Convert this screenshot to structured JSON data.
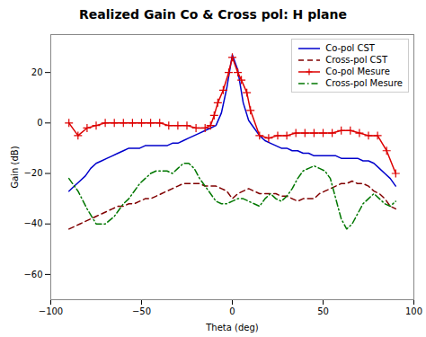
{
  "chart_data": {
    "type": "line",
    "title": "Realized Gain Co & Cross pol: H plane",
    "xlabel": "Theta (deg)",
    "ylabel": "Gain (dB)",
    "xlim": [
      -100,
      100
    ],
    "ylim": [
      -70,
      35
    ],
    "xticks": [
      -100,
      -50,
      0,
      50,
      100
    ],
    "yticks": [
      -60,
      -40,
      -20,
      0,
      20
    ],
    "grid": false,
    "legend": "upper right",
    "series": [
      {
        "name": "Co-pol CST",
        "color": "#0000cc",
        "line_style": "solid",
        "x": [
          -90,
          -87,
          -84,
          -81,
          -78,
          -75,
          -72,
          -69,
          -66,
          -63,
          -60,
          -57,
          -54,
          -51,
          -48,
          -45,
          -42,
          -39,
          -36,
          -33,
          -30,
          -27,
          -24,
          -21,
          -18,
          -15,
          -12,
          -9,
          -6,
          -3,
          0,
          3,
          6,
          9,
          12,
          15,
          18,
          21,
          24,
          27,
          30,
          33,
          36,
          39,
          42,
          45,
          48,
          51,
          54,
          57,
          60,
          63,
          66,
          69,
          72,
          75,
          78,
          81,
          84,
          87,
          90
        ],
        "values": [
          -27,
          -25,
          -23,
          -21,
          -18,
          -16,
          -15,
          -14,
          -13,
          -12,
          -11,
          -10,
          -10,
          -10,
          -9,
          -9,
          -9,
          -9,
          -9,
          -8,
          -8,
          -7,
          -6,
          -5,
          -4,
          -3,
          -2,
          -1,
          4,
          14,
          27,
          21,
          8,
          1,
          -2,
          -5,
          -7,
          -8,
          -9,
          -10,
          -10,
          -11,
          -11,
          -12,
          -12,
          -13,
          -13,
          -13,
          -13,
          -13,
          -14,
          -14,
          -14,
          -14,
          -15,
          -15,
          -16,
          -18,
          -20,
          -22,
          -25
        ]
      },
      {
        "name": "Cross-pol CST",
        "color": "#800000",
        "line_style": "dashed",
        "x": [
          -90,
          -87,
          -84,
          -81,
          -78,
          -75,
          -72,
          -69,
          -66,
          -63,
          -60,
          -57,
          -54,
          -51,
          -48,
          -45,
          -42,
          -39,
          -36,
          -33,
          -30,
          -27,
          -24,
          -21,
          -18,
          -15,
          -12,
          -9,
          -6,
          -3,
          0,
          3,
          6,
          9,
          12,
          15,
          18,
          21,
          24,
          27,
          30,
          33,
          36,
          39,
          42,
          45,
          48,
          51,
          54,
          57,
          60,
          63,
          66,
          69,
          72,
          75,
          78,
          81,
          84,
          87,
          90
        ],
        "values": [
          -42,
          -41,
          -40,
          -39,
          -38,
          -37,
          -36,
          -35,
          -34,
          -33,
          -33,
          -32,
          -32,
          -31,
          -30,
          -30,
          -29,
          -28,
          -27,
          -26,
          -25,
          -24,
          -24,
          -24,
          -24,
          -25,
          -25,
          -25,
          -26,
          -27,
          -30,
          -28,
          -27,
          -26,
          -27,
          -28,
          -28,
          -28,
          -28,
          -29,
          -29,
          -30,
          -31,
          -30,
          -30,
          -30,
          -28,
          -27,
          -26,
          -25,
          -24,
          -24,
          -23,
          -24,
          -24,
          -25,
          -27,
          -28,
          -30,
          -33,
          -34
        ]
      },
      {
        "name": "Co-pol Mesure",
        "color": "#dd0000",
        "line_style": "solid",
        "marker": "plus",
        "x": [
          -90,
          -85,
          -80,
          -75,
          -70,
          -65,
          -60,
          -55,
          -50,
          -45,
          -40,
          -35,
          -30,
          -25,
          -20,
          -15,
          -12,
          -10,
          -8,
          -5,
          -2,
          0,
          3,
          5,
          8,
          10,
          15,
          20,
          25,
          30,
          35,
          40,
          45,
          50,
          55,
          60,
          65,
          70,
          75,
          80,
          85,
          90
        ],
        "values": [
          0,
          -5,
          -2,
          -1,
          0,
          0,
          0,
          0,
          0,
          0,
          0,
          -1,
          -1,
          -1,
          -2,
          -2,
          -1,
          3,
          8,
          13,
          20,
          26,
          20,
          17,
          12,
          5,
          -5,
          -6,
          -5,
          -5,
          -4,
          -4,
          -4,
          -4,
          -4,
          -3,
          -3,
          -4,
          -5,
          -5,
          -11,
          -20
        ]
      },
      {
        "name": "Cross-pol Mesure",
        "color": "#007700",
        "line_style": "dashdot",
        "x": [
          -90,
          -85,
          -80,
          -75,
          -70,
          -65,
          -60,
          -57,
          -54,
          -51,
          -48,
          -45,
          -42,
          -39,
          -36,
          -33,
          -30,
          -27,
          -24,
          -21,
          -18,
          -15,
          -12,
          -9,
          -6,
          -3,
          0,
          3,
          6,
          9,
          12,
          15,
          18,
          21,
          24,
          27,
          30,
          33,
          36,
          39,
          42,
          45,
          48,
          51,
          54,
          57,
          60,
          63,
          66,
          69,
          72,
          75,
          78,
          81,
          84,
          87,
          90
        ],
        "values": [
          -22,
          -27,
          -34,
          -40,
          -40,
          -37,
          -32,
          -30,
          -27,
          -24,
          -22,
          -20,
          -19,
          -19,
          -19,
          -20,
          -18,
          -16,
          -16,
          -18,
          -22,
          -25,
          -28,
          -31,
          -32,
          -32,
          -31,
          -30,
          -30,
          -31,
          -32,
          -33,
          -30,
          -28,
          -30,
          -31,
          -29,
          -26,
          -22,
          -19,
          -18,
          -17,
          -18,
          -19,
          -22,
          -30,
          -38,
          -42,
          -40,
          -36,
          -32,
          -30,
          -28,
          -30,
          -32,
          -33,
          -31
        ]
      }
    ]
  }
}
